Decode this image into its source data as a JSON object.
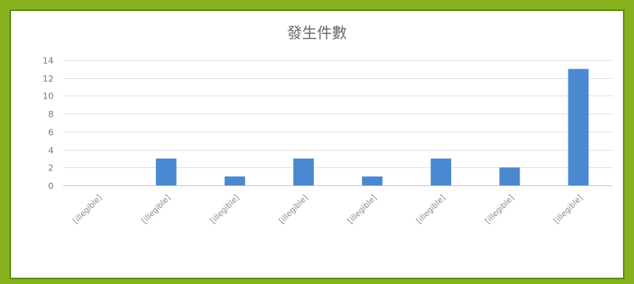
{
  "chart_data": {
    "type": "bar",
    "title": "發生件數",
    "categories": [
      "[illegible]",
      "[illegible]",
      "[illegible]",
      "[illegible]",
      "[illegible]",
      "[illegible]",
      "[illegible]",
      "[illegible]"
    ],
    "values": [
      0,
      3,
      1,
      3,
      1,
      3,
      2,
      13
    ],
    "ylim": [
      0,
      14
    ],
    "yticks": [
      0,
      2,
      4,
      6,
      8,
      10,
      12,
      14
    ],
    "grid": true,
    "legend": "none",
    "colors": {
      "bar": "#4a89d2",
      "frame": "#86b21d",
      "frame_dark": "#5f8a12"
    }
  }
}
